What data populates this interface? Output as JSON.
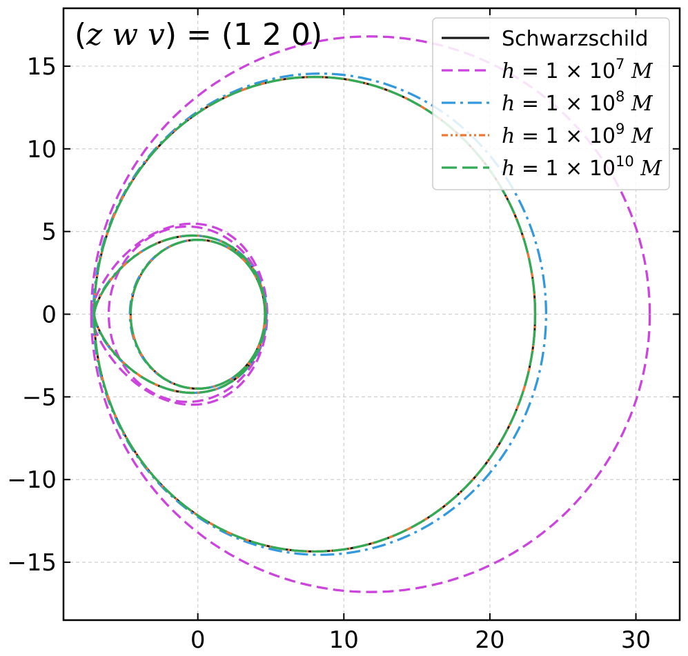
{
  "chart_data": {
    "type": "line",
    "title": "",
    "annotation": {
      "prefix": "(",
      "vars": "z w v",
      "suffix": ") = (1 2 0)"
    },
    "xlabel": "",
    "ylabel": "",
    "xlim": [
      -9.2,
      33
    ],
    "ylim": [
      -18.5,
      18.5
    ],
    "xticks": [
      0,
      10,
      20,
      30
    ],
    "yticks": [
      -15,
      -10,
      -5,
      0,
      5,
      10,
      15
    ],
    "xtick_labels": [
      "0",
      "10",
      "20",
      "30"
    ],
    "ytick_labels": [
      "−15",
      "−10",
      "−5",
      "0",
      "5",
      "10",
      "15"
    ],
    "grid": true,
    "legend_position": "top-right",
    "series": [
      {
        "name": "Schwarzschild",
        "label_parts": {
          "text": "Schwarzschild"
        },
        "color": "#1a1a1a",
        "style": "solid",
        "orbit": {
          "outer_center": [
            7.9,
            0
          ],
          "outer_radius": 15.2,
          "outer_ry": 14.35,
          "inner_center": [
            0,
            0
          ],
          "inner_rx": 4.6,
          "inner_ry": 4.5,
          "apex_x": -7.1
        }
      },
      {
        "name": "h = 1 × 10^7 M",
        "label_parts": {
          "pre": "h",
          "mid": " = 1 × 10",
          "exp": "7",
          "post": " M"
        },
        "color": "#cc44dd",
        "style": "dashed",
        "orbit": {
          "outer_center": [
            11.0,
            0
          ],
          "outer_radius": 19.95,
          "outer_ry": 16.8,
          "inner_center": [
            -0.7,
            0
          ],
          "inner_rx": 5.4,
          "inner_ry": 5.3,
          "apex_x": -7.3
        }
      },
      {
        "name": "h = 1 × 10^8 M",
        "label_parts": {
          "pre": "h",
          "mid": " = 1 × 10",
          "exp": "8",
          "post": " M"
        },
        "color": "#3399dd",
        "style": "dashdot",
        "orbit": {
          "outer_center": [
            8.3,
            0
          ],
          "outer_radius": 15.55,
          "outer_ry": 14.55,
          "inner_center": [
            0,
            0
          ],
          "inner_rx": 4.65,
          "inner_ry": 4.5,
          "apex_x": -7.15
        }
      },
      {
        "name": "h = 1 × 10^9 M",
        "label_parts": {
          "pre": "h",
          "mid": " = 1 × 10",
          "exp": "9",
          "post": " M"
        },
        "color": "#ee7733",
        "style": "dashdotdot",
        "orbit": {
          "outer_center": [
            7.9,
            0
          ],
          "outer_radius": 15.2,
          "outer_ry": 14.35,
          "inner_center": [
            0,
            0
          ],
          "inner_rx": 4.6,
          "inner_ry": 4.5,
          "apex_x": -7.1
        }
      },
      {
        "name": "h = 1 × 10^10 M",
        "label_parts": {
          "pre": "h",
          "mid": " = 1 × 10",
          "exp": "10",
          "post": " M"
        },
        "color": "#33aa55",
        "style": "longdash",
        "orbit": {
          "outer_center": [
            7.9,
            0
          ],
          "outer_radius": 15.2,
          "outer_ry": 14.35,
          "inner_center": [
            0,
            0
          ],
          "inner_rx": 4.6,
          "inner_ry": 4.5,
          "apex_x": -7.1
        }
      }
    ]
  }
}
